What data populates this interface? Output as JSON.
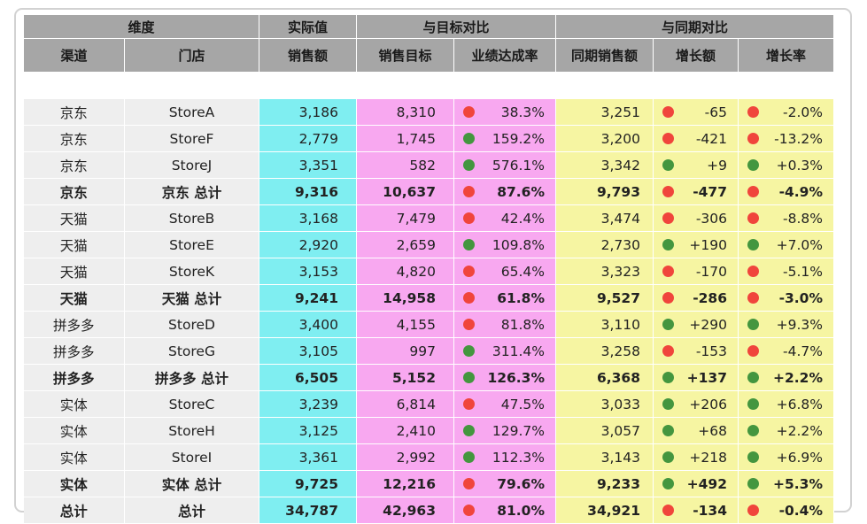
{
  "colors": {
    "header_bg": "#a6a6a6",
    "dim_bg": "#eeeeee",
    "actual_bg": "#7feef1",
    "target_bg": "#f8a8f0",
    "yoy_bg": "#f6f5a2",
    "bad": "#f0453c",
    "good": "#44963f"
  },
  "header": {
    "groups": [
      "维度",
      "实际值",
      "与目标对比",
      "与同期对比"
    ],
    "columns": [
      "渠道",
      "门店",
      "销售额",
      "销售目标",
      "业绩达成率",
      "同期销售额",
      "增长额",
      "增长率"
    ]
  },
  "rows": [
    {
      "kind": "row",
      "channel": "京东",
      "store": "StoreA",
      "sales": "3,186",
      "target": "8,310",
      "rate": "38.3%",
      "rate_status": "red",
      "prior": "3,251",
      "growth": "-65",
      "growth_status": "red",
      "growth_rate": "-2.0%",
      "gr_status": "red"
    },
    {
      "kind": "row",
      "channel": "京东",
      "store": "StoreF",
      "sales": "2,779",
      "target": "1,745",
      "rate": "159.2%",
      "rate_status": "green",
      "prior": "3,200",
      "growth": "-421",
      "growth_status": "red",
      "growth_rate": "-13.2%",
      "gr_status": "red"
    },
    {
      "kind": "row",
      "channel": "京东",
      "store": "StoreJ",
      "sales": "3,351",
      "target": "582",
      "rate": "576.1%",
      "rate_status": "green",
      "prior": "3,342",
      "growth": "+9",
      "growth_status": "green",
      "growth_rate": "+0.3%",
      "gr_status": "green"
    },
    {
      "kind": "sub",
      "channel": "京东",
      "store": "京东 总计",
      "sales": "9,316",
      "target": "10,637",
      "rate": "87.6%",
      "rate_status": "red",
      "prior": "9,793",
      "growth": "-477",
      "growth_status": "red",
      "growth_rate": "-4.9%",
      "gr_status": "red"
    },
    {
      "kind": "row",
      "channel": "天猫",
      "store": "StoreB",
      "sales": "3,168",
      "target": "7,479",
      "rate": "42.4%",
      "rate_status": "red",
      "prior": "3,474",
      "growth": "-306",
      "growth_status": "red",
      "growth_rate": "-8.8%",
      "gr_status": "red"
    },
    {
      "kind": "row",
      "channel": "天猫",
      "store": "StoreE",
      "sales": "2,920",
      "target": "2,659",
      "rate": "109.8%",
      "rate_status": "green",
      "prior": "2,730",
      "growth": "+190",
      "growth_status": "green",
      "growth_rate": "+7.0%",
      "gr_status": "green"
    },
    {
      "kind": "row",
      "channel": "天猫",
      "store": "StoreK",
      "sales": "3,153",
      "target": "4,820",
      "rate": "65.4%",
      "rate_status": "red",
      "prior": "3,323",
      "growth": "-170",
      "growth_status": "red",
      "growth_rate": "-5.1%",
      "gr_status": "red"
    },
    {
      "kind": "sub",
      "channel": "天猫",
      "store": "天猫 总计",
      "sales": "9,241",
      "target": "14,958",
      "rate": "61.8%",
      "rate_status": "red",
      "prior": "9,527",
      "growth": "-286",
      "growth_status": "red",
      "growth_rate": "-3.0%",
      "gr_status": "red"
    },
    {
      "kind": "row",
      "channel": "拼多多",
      "store": "StoreD",
      "sales": "3,400",
      "target": "4,155",
      "rate": "81.8%",
      "rate_status": "red",
      "prior": "3,110",
      "growth": "+290",
      "growth_status": "green",
      "growth_rate": "+9.3%",
      "gr_status": "green"
    },
    {
      "kind": "row",
      "channel": "拼多多",
      "store": "StoreG",
      "sales": "3,105",
      "target": "997",
      "rate": "311.4%",
      "rate_status": "green",
      "prior": "3,258",
      "growth": "-153",
      "growth_status": "red",
      "growth_rate": "-4.7%",
      "gr_status": "red"
    },
    {
      "kind": "sub",
      "channel": "拼多多",
      "store": "拼多多 总计",
      "sales": "6,505",
      "target": "5,152",
      "rate": "126.3%",
      "rate_status": "green",
      "prior": "6,368",
      "growth": "+137",
      "growth_status": "green",
      "growth_rate": "+2.2%",
      "gr_status": "green"
    },
    {
      "kind": "row",
      "channel": "实体",
      "store": "StoreC",
      "sales": "3,239",
      "target": "6,814",
      "rate": "47.5%",
      "rate_status": "red",
      "prior": "3,033",
      "growth": "+206",
      "growth_status": "green",
      "growth_rate": "+6.8%",
      "gr_status": "green"
    },
    {
      "kind": "row",
      "channel": "实体",
      "store": "StoreH",
      "sales": "3,125",
      "target": "2,410",
      "rate": "129.7%",
      "rate_status": "green",
      "prior": "3,057",
      "growth": "+68",
      "growth_status": "green",
      "growth_rate": "+2.2%",
      "gr_status": "green"
    },
    {
      "kind": "row",
      "channel": "实体",
      "store": "StoreI",
      "sales": "3,361",
      "target": "2,992",
      "rate": "112.3%",
      "rate_status": "green",
      "prior": "3,143",
      "growth": "+218",
      "growth_status": "green",
      "growth_rate": "+6.9%",
      "gr_status": "green"
    },
    {
      "kind": "sub",
      "channel": "实体",
      "store": "实体 总计",
      "sales": "9,725",
      "target": "12,216",
      "rate": "79.6%",
      "rate_status": "red",
      "prior": "9,233",
      "growth": "+492",
      "growth_status": "green",
      "growth_rate": "+5.3%",
      "gr_status": "green"
    },
    {
      "kind": "total",
      "channel": "总计",
      "store": "总计",
      "sales": "34,787",
      "target": "42,963",
      "rate": "81.0%",
      "rate_status": "red",
      "prior": "34,921",
      "growth": "-134",
      "growth_status": "red",
      "growth_rate": "-0.4%",
      "gr_status": "red"
    }
  ]
}
